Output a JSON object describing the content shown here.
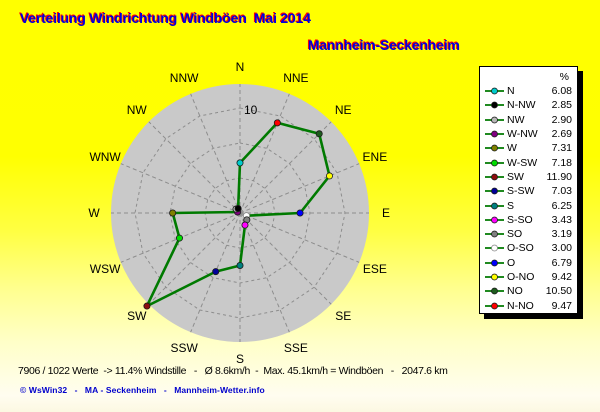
{
  "header": {
    "title": "Verteilung Windrichtung Windböen  Mai 2014",
    "subtitle": "Mannheim-Seckenheim"
  },
  "colors": {
    "background_top": "#ffff00",
    "background_bottom": "#fcf8e2",
    "title_text": "#0000dd",
    "title_shadow": "#ff0000",
    "plot_disc": "#c9c9c9",
    "grid": "#8d8d8d",
    "polygon_line": "#007a00",
    "legend_background": "#ffffff",
    "legend_border": "#000000",
    "credit_text": "#0000cc"
  },
  "chart_data": {
    "type": "radar",
    "title": "Verteilung Windrichtung Windböen Mai 2014",
    "subtitle": "Mannheim-Seckenheim",
    "units": "%",
    "categories": [
      "N",
      "NNE",
      "NE",
      "ENE",
      "E",
      "ESE",
      "SE",
      "SSE",
      "S",
      "SSW",
      "SW",
      "WSW",
      "W",
      "WNW",
      "NW",
      "NNW"
    ],
    "values": [
      6.08,
      9.47,
      10.5,
      9.42,
      6.79,
      3.0,
      3.19,
      3.43,
      6.25,
      7.03,
      11.9,
      7.18,
      7.31,
      2.69,
      2.9,
      2.85
    ],
    "point_colors": [
      "#00cccc",
      "#ff0000",
      "#1e5c1e",
      "#ffff00",
      "#0000ff",
      "#ffffff",
      "#808080",
      "#ff00ff",
      "#008080",
      "#000099",
      "#8b0f0f",
      "#00dd00",
      "#808000",
      "#800080",
      "#b8b8b8",
      "#000000"
    ],
    "line_color": "#007a00",
    "grid_style": "dashed",
    "legend_position": "right",
    "r_axis": {
      "min": 2.5,
      "rings": [
        5,
        7.5,
        10
      ],
      "ring_label": "10",
      "ring_label_value": 10
    }
  },
  "legend": {
    "header": "%",
    "entries": [
      {
        "label": "N",
        "direction": "N",
        "value": "6.08",
        "marker_color": "#00cccc"
      },
      {
        "label": "N-NW",
        "direction": "NNW",
        "value": "2.85",
        "marker_color": "#000000"
      },
      {
        "label": "NW",
        "direction": "NW",
        "value": "2.90",
        "marker_color": "#b8b8b8"
      },
      {
        "label": "W-NW",
        "direction": "WNW",
        "value": "2.69",
        "marker_color": "#800080"
      },
      {
        "label": "W",
        "direction": "W",
        "value": "7.31",
        "marker_color": "#808000"
      },
      {
        "label": "W-SW",
        "direction": "WSW",
        "value": "7.18",
        "marker_color": "#00dd00"
      },
      {
        "label": "SW",
        "direction": "SW",
        "value": "11.90",
        "marker_color": "#8b0f0f"
      },
      {
        "label": "S-SW",
        "direction": "SSW",
        "value": "7.03",
        "marker_color": "#000099"
      },
      {
        "label": "S",
        "direction": "S",
        "value": "6.25",
        "marker_color": "#008080"
      },
      {
        "label": "S-SO",
        "direction": "SSE",
        "value": "3.43",
        "marker_color": "#ff00ff"
      },
      {
        "label": "SO",
        "direction": "SE",
        "value": "3.19",
        "marker_color": "#808080"
      },
      {
        "label": "O-SO",
        "direction": "ESE",
        "value": "3.00",
        "marker_color": "#ffffff"
      },
      {
        "label": "O",
        "direction": "E",
        "value": "6.79",
        "marker_color": "#0000ff"
      },
      {
        "label": "O-NO",
        "direction": "ENE",
        "value": "9.42",
        "marker_color": "#ffff00"
      },
      {
        "label": "NO",
        "direction": "NE",
        "value": "10.50",
        "marker_color": "#1e5c1e"
      },
      {
        "label": "N-NO",
        "direction": "NNE",
        "value": "9.47",
        "marker_color": "#ff0000"
      }
    ]
  },
  "footer": {
    "stats": "7906 / 1022 Werte  -> 11.4% Windstille   -   Ø 8.6km/h  -  Max. 45.1km/h = Windböen   -   2047.6 km",
    "credit": "© WsWin32   -   MA - Seckenheim   -   Mannheim-Wetter.info"
  }
}
